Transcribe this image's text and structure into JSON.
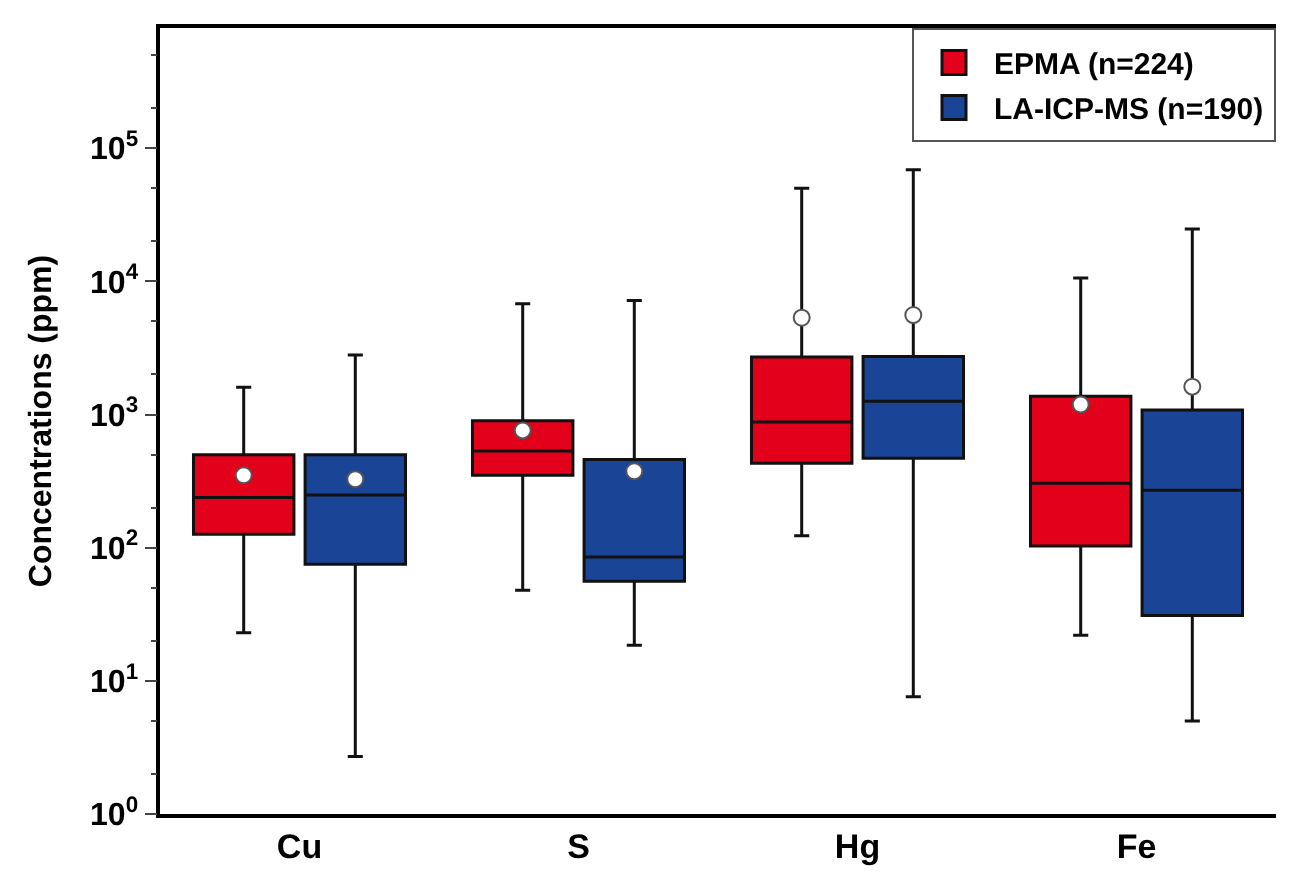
{
  "chart_data": {
    "type": "box",
    "ylabel": "Concentrations (ppm)",
    "categories": [
      "Cu",
      "S",
      "Hg",
      "Fe"
    ],
    "log": true,
    "ylim": [
      1,
      800000
    ],
    "yticks": [
      {
        "value": 1,
        "label": "10$^{0}$"
      },
      {
        "value": 10,
        "label": "10$^{1}$"
      },
      {
        "value": 100,
        "label": "10$^{2}$"
      },
      {
        "value": 1000,
        "label": "10$^{3}$"
      },
      {
        "value": 10000,
        "label": "10$^{4}$"
      },
      {
        "value": 100000,
        "label": "10$^{5}$"
      }
    ],
    "legend": "top right",
    "series": [
      {
        "name": "EPMA (n=224)",
        "color": "#e2001a",
        "boxes": [
          {
            "low": 23,
            "q1": 126,
            "median": 238,
            "q3": 500,
            "high": 1600,
            "mean": 350
          },
          {
            "low": 48,
            "q1": 350,
            "median": 532,
            "q3": 900,
            "high": 6800,
            "mean": 760
          },
          {
            "low": 123,
            "q1": 430,
            "median": 880,
            "q3": 2700,
            "high": 50000,
            "mean": 5340
          },
          {
            "low": 22,
            "q1": 103,
            "median": 305,
            "q3": 1370,
            "high": 10600,
            "mean": 1190
          }
        ]
      },
      {
        "name": "LA-ICP-MS (n=190)",
        "color": "#1a4597",
        "boxes": [
          {
            "low": 2.7,
            "q1": 75,
            "median": 249,
            "q3": 500,
            "high": 2800,
            "mean": 327
          },
          {
            "low": 18.5,
            "q1": 56,
            "median": 85,
            "q3": 460,
            "high": 7200,
            "mean": 375
          },
          {
            "low": 7.6,
            "q1": 470,
            "median": 1260,
            "q3": 2730,
            "high": 69000,
            "mean": 5590
          },
          {
            "low": 5,
            "q1": 31,
            "median": 270,
            "q3": 1080,
            "high": 24700,
            "mean": 1620
          }
        ]
      }
    ]
  }
}
